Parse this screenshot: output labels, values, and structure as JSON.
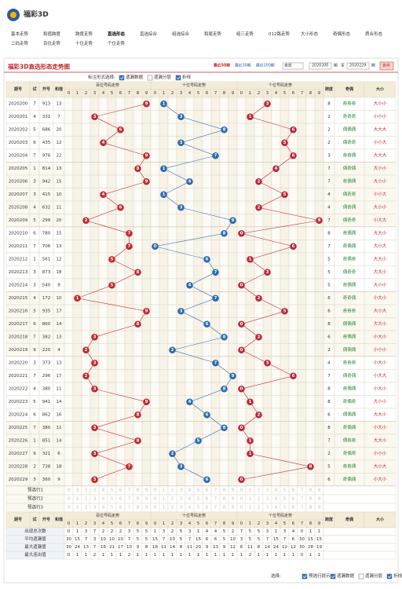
{
  "header": {
    "logo_text": "福彩3D",
    "nav": [
      "基本走势",
      "和值跨度",
      "跨度走势",
      "直选形态",
      "直选综合",
      "组选综合",
      "和尾走势",
      "组三走势",
      "012路走势",
      "大小形态",
      "奇偶形态",
      "质合形态",
      "二码走势",
      "百位走势",
      "十位走势",
      "个位走势"
    ],
    "active": 3
  },
  "panel": {
    "title": "福彩3D直选形态走势图",
    "periods": [
      "最近50期",
      "最近30期",
      "最近100期"
    ],
    "select": "自定",
    "from": "2020200",
    "from_unit": "期",
    "to_label": "至",
    "to": "2020229",
    "to_unit": "期",
    "query": "查询"
  },
  "controls": {
    "label": "标注形式选择:",
    "options": [
      "遗漏数据",
      "遗漏分层",
      "折线"
    ],
    "checked": [
      true,
      false,
      true
    ]
  },
  "table": {
    "headers": {
      "issue": "期号",
      "test": "试",
      "draw": "开号",
      "sum": "和值",
      "hundreds": "百位号码走势",
      "tens": "十位号码走势",
      "units": "个位号码走势",
      "span": "跨度",
      "parity": "奇偶",
      "size": "大小"
    },
    "digits": [
      0,
      1,
      2,
      3,
      4,
      5,
      6,
      7,
      8,
      9
    ],
    "rows": [
      {
        "issue": "2020200",
        "test": 7,
        "draw": "913",
        "digits": [
          9,
          1,
          3
        ],
        "sum": 13,
        "span": 8,
        "parity": "奇奇奇",
        "size": "大小小"
      },
      {
        "issue": "2020201",
        "test": 4,
        "draw": "331",
        "digits": [
          3,
          3,
          1
        ],
        "sum": 7,
        "span": 2,
        "parity": "奇奇奇",
        "size": "小小小"
      },
      {
        "issue": "2020202",
        "test": 5,
        "draw": "686",
        "digits": [
          6,
          8,
          6
        ],
        "sum": 20,
        "span": 2,
        "parity": "偶偶偶",
        "size": "大大大"
      },
      {
        "issue": "2020203",
        "test": 6,
        "draw": "435",
        "digits": [
          4,
          3,
          5
        ],
        "sum": 12,
        "span": 2,
        "parity": "偶奇奇",
        "size": "小小大"
      },
      {
        "issue": "2020204",
        "test": 7,
        "draw": "976",
        "digits": [
          9,
          7,
          6
        ],
        "sum": 22,
        "span": 3,
        "parity": "奇奇偶",
        "size": "大大大"
      },
      {
        "issue": "2020205",
        "test": 1,
        "draw": "814",
        "digits": [
          8,
          1,
          4
        ],
        "sum": 13,
        "span": 7,
        "parity": "偶奇偶",
        "size": "大小小"
      },
      {
        "issue": "2020206",
        "test": 3,
        "draw": "942",
        "digits": [
          9,
          4,
          2
        ],
        "sum": 15,
        "span": 7,
        "parity": "奇偶偶",
        "size": "大小小"
      },
      {
        "issue": "2020207",
        "test": 3,
        "draw": "415",
        "digits": [
          4,
          1,
          5
        ],
        "sum": 10,
        "span": 4,
        "parity": "偶奇奇",
        "size": "小小大"
      },
      {
        "issue": "2020208",
        "test": 4,
        "draw": "632",
        "digits": [
          6,
          3,
          2
        ],
        "sum": 11,
        "span": 4,
        "parity": "偶奇偶",
        "size": "大小小"
      },
      {
        "issue": "2020209",
        "test": 5,
        "draw": "299",
        "digits": [
          2,
          9,
          9
        ],
        "sum": 20,
        "span": 7,
        "parity": "偶奇奇",
        "size": "小大大"
      },
      {
        "issue": "2020210",
        "test": 6,
        "draw": "780",
        "digits": [
          7,
          8,
          0
        ],
        "sum": 15,
        "span": 8,
        "parity": "奇偶偶",
        "size": "大大小"
      },
      {
        "issue": "2020211",
        "test": 7,
        "draw": "706",
        "digits": [
          7,
          0,
          6
        ],
        "sum": 13,
        "span": 7,
        "parity": "奇偶偶",
        "size": "大小大"
      },
      {
        "issue": "2020212",
        "test": 1,
        "draw": "561",
        "digits": [
          5,
          6,
          1
        ],
        "sum": 12,
        "span": 5,
        "parity": "奇偶奇",
        "size": "大大小"
      },
      {
        "issue": "2020213",
        "test": 3,
        "draw": "873",
        "digits": [
          8,
          7,
          3
        ],
        "sum": 18,
        "span": 5,
        "parity": "偶奇奇",
        "size": "大大小"
      },
      {
        "issue": "2020214",
        "test": 3,
        "draw": "540",
        "digits": [
          5,
          4,
          0
        ],
        "sum": 9,
        "span": 5,
        "parity": "奇偶偶",
        "size": "大小小"
      },
      {
        "issue": "2020215",
        "test": 4,
        "draw": "172",
        "digits": [
          1,
          7,
          2
        ],
        "sum": 10,
        "span": 6,
        "parity": "奇奇偶",
        "size": "小大小"
      },
      {
        "issue": "2020216",
        "test": 5,
        "draw": "935",
        "digits": [
          9,
          3,
          5
        ],
        "sum": 17,
        "span": 6,
        "parity": "奇奇奇",
        "size": "大小大"
      },
      {
        "issue": "2020217",
        "test": 6,
        "draw": "860",
        "digits": [
          8,
          6,
          0
        ],
        "sum": 14,
        "span": 8,
        "parity": "偶偶偶",
        "size": "大大小"
      },
      {
        "issue": "2020218",
        "test": 7,
        "draw": "382",
        "digits": [
          3,
          8,
          2
        ],
        "sum": 13,
        "span": 6,
        "parity": "奇偶偶",
        "size": "小大小"
      },
      {
        "issue": "2020219",
        "test": 9,
        "draw": "220",
        "digits": [
          2,
          2,
          0
        ],
        "sum": 4,
        "span": 2,
        "parity": "偶偶偶",
        "size": "小小小"
      },
      {
        "issue": "2020220",
        "test": 3,
        "draw": "373",
        "digits": [
          3,
          7,
          3
        ],
        "sum": 13,
        "span": 4,
        "parity": "奇奇奇",
        "size": "小大小"
      },
      {
        "issue": "2020221",
        "test": 7,
        "draw": "296",
        "digits": [
          2,
          9,
          6
        ],
        "sum": 17,
        "span": 7,
        "parity": "偶奇偶",
        "size": "小大大"
      },
      {
        "issue": "2020222",
        "test": 4,
        "draw": "380",
        "digits": [
          3,
          8,
          0
        ],
        "sum": 11,
        "span": 8,
        "parity": "奇偶偶",
        "size": "小大小"
      },
      {
        "issue": "2020223",
        "test": 5,
        "draw": "941",
        "digits": [
          9,
          4,
          1
        ],
        "sum": 14,
        "span": 8,
        "parity": "奇偶奇",
        "size": "大小小"
      },
      {
        "issue": "2020224",
        "test": 6,
        "draw": "862",
        "digits": [
          8,
          6,
          2
        ],
        "sum": 16,
        "span": 6,
        "parity": "偶偶偶",
        "size": "大大小"
      },
      {
        "issue": "2020225",
        "test": 7,
        "draw": "380",
        "digits": [
          3,
          8,
          0
        ],
        "sum": 11,
        "span": 8,
        "parity": "奇偶偶",
        "size": "小大小"
      },
      {
        "issue": "2020226",
        "test": 1,
        "draw": "851",
        "digits": [
          8,
          5,
          1
        ],
        "sum": 14,
        "span": 7,
        "parity": "偶奇奇",
        "size": "大大小"
      },
      {
        "issue": "2020227",
        "test": 9,
        "draw": "321",
        "digits": [
          3,
          2,
          1
        ],
        "sum": 6,
        "span": 2,
        "parity": "奇偶奇",
        "size": "小小小"
      },
      {
        "issue": "2020228",
        "test": 2,
        "draw": "738",
        "digits": [
          7,
          3,
          8
        ],
        "sum": 18,
        "span": 5,
        "parity": "奇奇偶",
        "size": "大小大"
      },
      {
        "issue": "2020229",
        "test": 3,
        "draw": "360",
        "digits": [
          3,
          6,
          0
        ],
        "sum": 9,
        "span": 6,
        "parity": "奇偶偶",
        "size": "小大小"
      }
    ],
    "preselect": [
      "预选行1",
      "预选行2",
      "预选行3"
    ],
    "stats": [
      {
        "label": "出现总次数",
        "values": [
          0,
          1,
          3,
          7,
          2,
          2,
          2,
          3,
          5,
          5,
          1,
          3,
          2,
          5,
          3,
          1,
          4,
          4,
          5,
          2,
          7,
          5,
          5,
          3,
          1,
          3,
          4,
          0,
          1,
          1
        ]
      },
      {
        "label": "平均遗漏值",
        "values": [
          30,
          15,
          7,
          3,
          10,
          10,
          10,
          7,
          5,
          5,
          15,
          7,
          10,
          5,
          7,
          15,
          6,
          6,
          5,
          10,
          3,
          5,
          5,
          7,
          15,
          7,
          6,
          30,
          15,
          15
        ]
      },
      {
        "label": "最大遗漏值",
        "values": [
          30,
          24,
          13,
          7,
          16,
          21,
          17,
          10,
          9,
          8,
          18,
          11,
          14,
          8,
          11,
          20,
          9,
          13,
          9,
          12,
          6,
          11,
          8,
          14,
          24,
          12,
          12,
          30,
          28,
          19
        ]
      },
      {
        "label": "最大连出值",
        "values": [
          0,
          1,
          1,
          2,
          1,
          1,
          1,
          2,
          1,
          1,
          1,
          1,
          1,
          1,
          1,
          1,
          1,
          1,
          1,
          1,
          1,
          2,
          1,
          1,
          1,
          1,
          1,
          0,
          1,
          1
        ]
      }
    ]
  },
  "footer": {
    "label": "选择:",
    "options": [
      "预选行提示",
      "遗漏数据",
      "遗漏分层",
      "折线"
    ],
    "checked": [
      true,
      true,
      false,
      true
    ]
  }
}
